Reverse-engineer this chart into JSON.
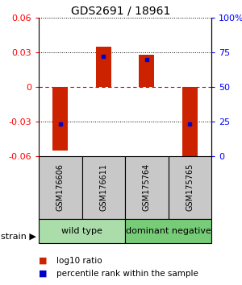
{
  "title": "GDS2691 / 18961",
  "samples": [
    "GSM176606",
    "GSM176611",
    "GSM175764",
    "GSM175765"
  ],
  "log10_ratio": [
    -0.055,
    0.035,
    0.028,
    -0.062
  ],
  "percentile_rank": [
    23,
    72,
    70,
    23
  ],
  "groups": [
    {
      "name": "wild type",
      "samples": [
        0,
        1
      ],
      "color": "#aaddaa"
    },
    {
      "name": "dominant negative",
      "samples": [
        2,
        3
      ],
      "color": "#77cc77"
    }
  ],
  "ylim": [
    -0.06,
    0.06
  ],
  "yticks_left": [
    -0.06,
    -0.03,
    0,
    0.03,
    0.06
  ],
  "yticks_right": [
    0,
    25,
    50,
    75,
    100
  ],
  "bar_color": "#cc2200",
  "percentile_color": "#0000cc",
  "zero_line_color": "#cc0000",
  "label_log10": "log10 ratio",
  "label_pct": "percentile rank within the sample",
  "group_label": "strain",
  "title_fontsize": 10,
  "tick_fontsize": 8,
  "sample_fontsize": 7,
  "group_fontsize": 8,
  "legend_fontsize": 7.5,
  "bar_width": 0.35
}
